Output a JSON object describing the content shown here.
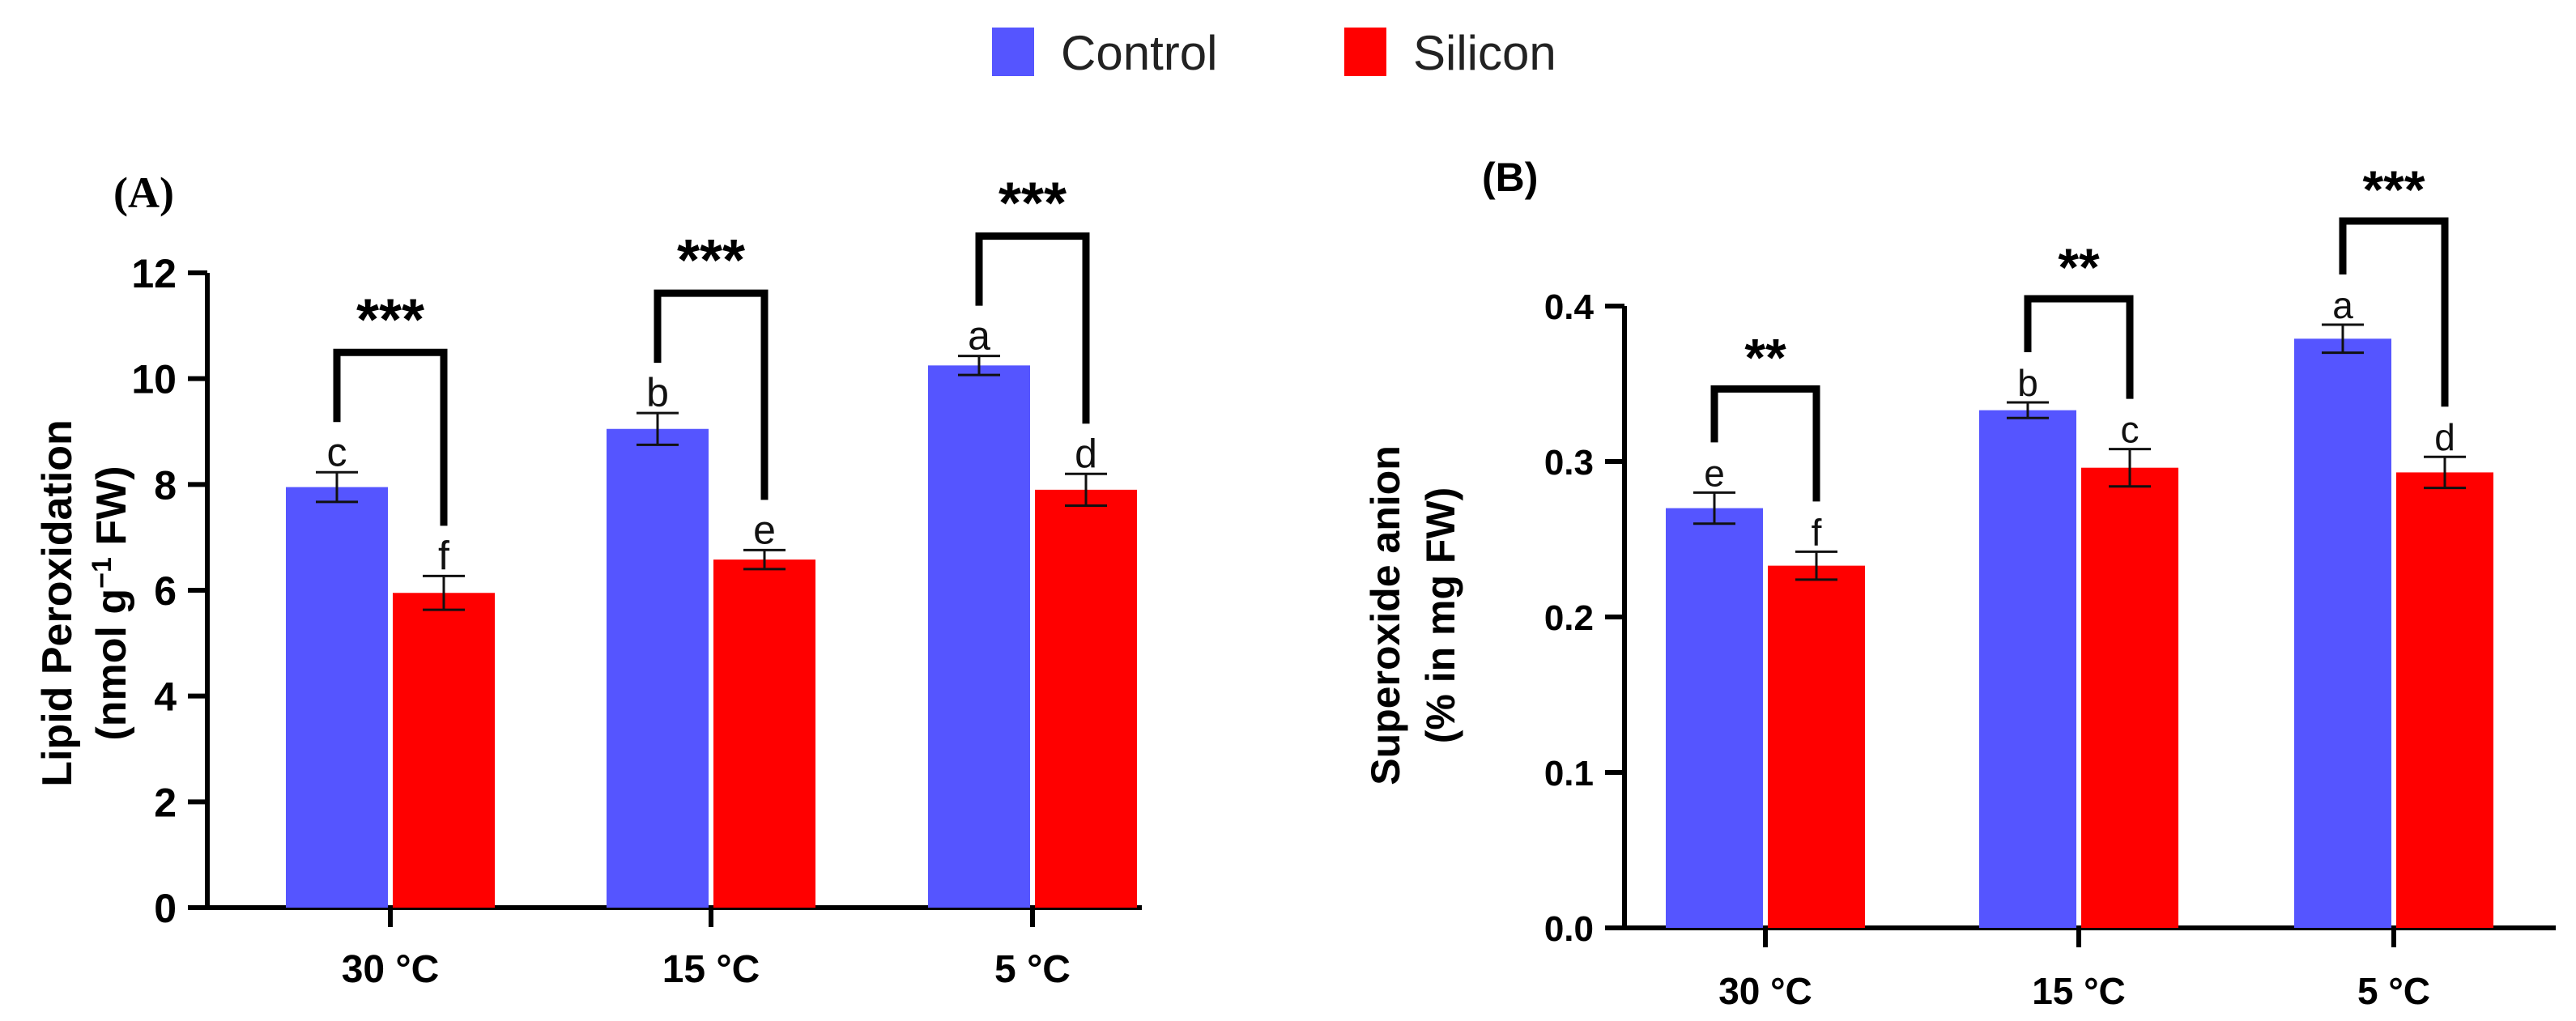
{
  "legend": {
    "items": [
      {
        "name": "Control",
        "color": "#5555ff"
      },
      {
        "name": "Silicon",
        "color": "#ff0000"
      }
    ]
  },
  "chart_data": [
    {
      "panel": "(A)",
      "type": "bar",
      "ylabel_line1": "Lipid Peroxidation",
      "ylabel_line2_pre": "(nmol g",
      "ylabel_line2_sup": "−1",
      "ylabel_line2_post": " FW)",
      "ylim": [
        0,
        12
      ],
      "yticks": [
        0,
        2,
        4,
        6,
        8,
        10,
        12
      ],
      "ytick_labels": [
        "0",
        "2",
        "4",
        "6",
        "8",
        "10",
        "12"
      ],
      "categories": [
        "30 °C",
        "15 °C",
        "5 °C"
      ],
      "series": [
        {
          "name": "Control",
          "values": [
            7.95,
            9.05,
            10.25
          ],
          "errors": [
            0.28,
            0.3,
            0.18
          ],
          "letters": [
            "c",
            "b",
            "a"
          ]
        },
        {
          "name": "Silicon",
          "values": [
            5.95,
            6.58,
            7.9
          ],
          "errors": [
            0.32,
            0.18,
            0.3
          ],
          "letters": [
            "f",
            "e",
            "d"
          ]
        }
      ],
      "significance": [
        "***",
        "***",
        "***"
      ]
    },
    {
      "panel": "(B)",
      "type": "bar",
      "ylabel_line1": "Superoxide anion",
      "ylabel_line2": "(% in mg FW)",
      "ylim": [
        0,
        0.4
      ],
      "yticks": [
        0,
        0.1,
        0.2,
        0.3,
        0.4
      ],
      "ytick_labels": [
        "0.0",
        "0.1",
        "0.2",
        "0.3",
        "0.4"
      ],
      "categories": [
        "30 °C",
        "15 °C",
        "5 °C"
      ],
      "series": [
        {
          "name": "Control",
          "values": [
            0.27,
            0.333,
            0.379
          ],
          "errors": [
            0.01,
            0.005,
            0.009
          ],
          "letters": [
            "e",
            "b",
            "a"
          ]
        },
        {
          "name": "Silicon",
          "values": [
            0.233,
            0.296,
            0.293
          ],
          "errors": [
            0.009,
            0.012,
            0.01
          ],
          "letters": [
            "f",
            "c",
            "d"
          ]
        }
      ],
      "significance": [
        "**",
        "**",
        "***"
      ]
    }
  ]
}
